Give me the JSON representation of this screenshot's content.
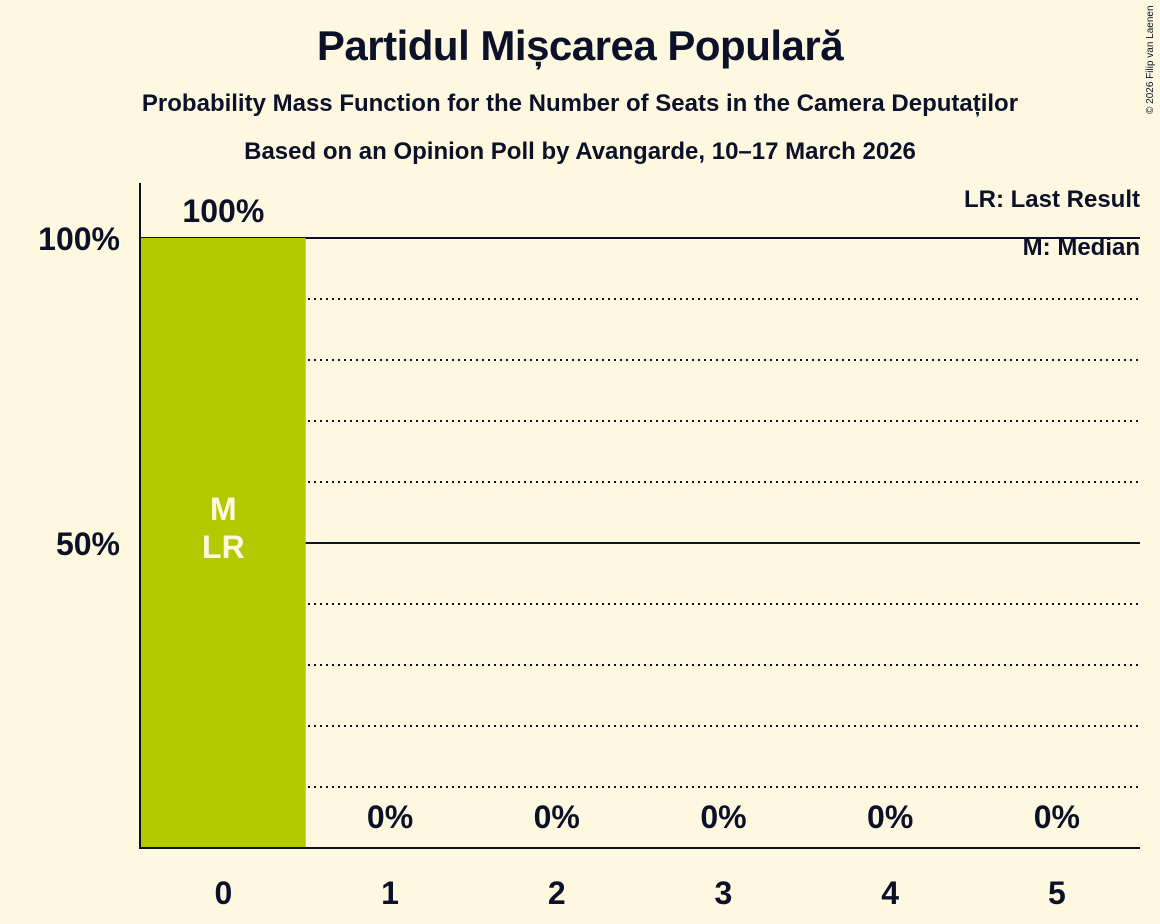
{
  "header": {
    "title": "Partidul Mișcarea Populară",
    "subtitle": "Probability Mass Function for the Number of Seats in the Camera Deputaților",
    "source_line": "Based on an Opinion Poll by Avangarde, 10–17 March 2026",
    "copyright": "© 2026 Filip van Laenen"
  },
  "legend": {
    "last_result": "LR: Last Result",
    "median": "M: Median"
  },
  "colors": {
    "background": "#FFF8E1",
    "bar": "#B5C900",
    "text": "#0A1128",
    "bar_label": "#FFF8E1"
  },
  "chart_data": {
    "type": "bar",
    "title": "Partidul Mișcarea Populară",
    "subtitle": "Probability Mass Function for the Number of Seats in the Camera Deputaților",
    "caption": "Based on an Opinion Poll by Avangarde, 10–17 March 2026",
    "xlabel": "",
    "ylabel": "",
    "categories": [
      "0",
      "1",
      "2",
      "3",
      "4",
      "5"
    ],
    "values": [
      100,
      0,
      0,
      0,
      0,
      0
    ],
    "value_labels": [
      "100%",
      "0%",
      "0%",
      "0%",
      "0%",
      "0%"
    ],
    "ylim": [
      0,
      110
    ],
    "yticks": [
      50,
      100
    ],
    "ytick_labels": [
      "50%",
      "100%"
    ],
    "grid": {
      "dotted_every": 10,
      "solid_at": [
        50,
        100
      ]
    },
    "bar_annotations": [
      {
        "category": "0",
        "labels": [
          "M",
          "LR"
        ]
      }
    ],
    "legend": [
      "LR: Last Result",
      "M: Median"
    ],
    "legend_position": "top-right"
  }
}
